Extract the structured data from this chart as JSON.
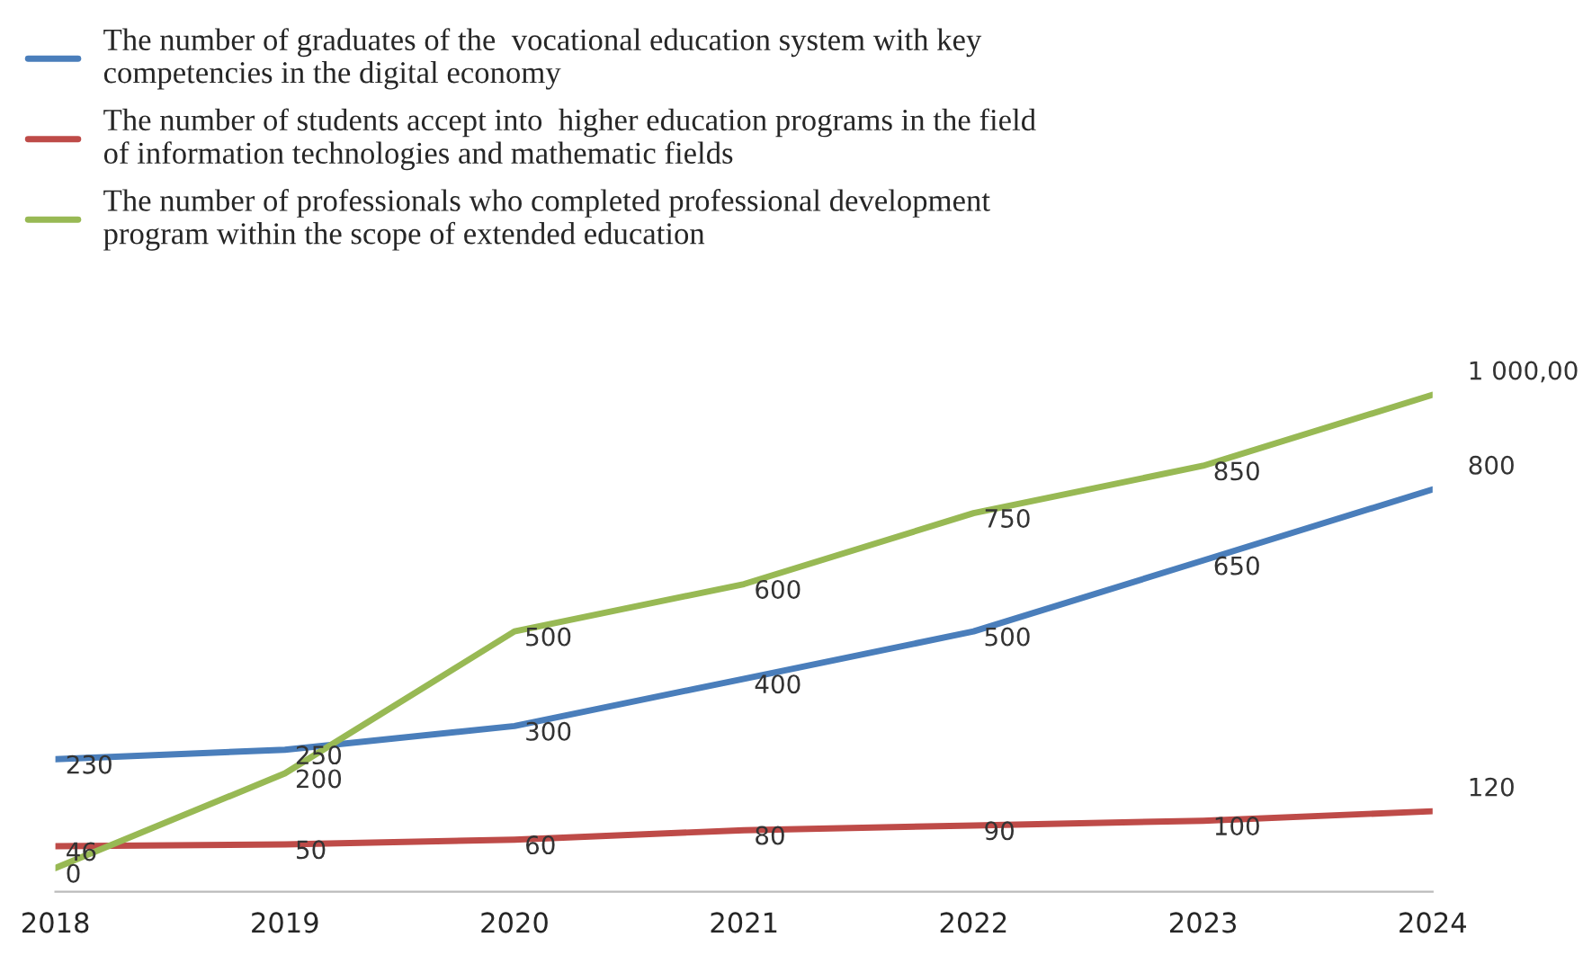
{
  "chart_data": {
    "type": "line",
    "categories": [
      "2018",
      "2019",
      "2020",
      "2021",
      "2022",
      "2023",
      "2024"
    ],
    "series": [
      {
        "name": "The number of graduates of the  vocational education system with key\ncompetencies in the digital economy",
        "color": "#4a7ebb",
        "values": [
          230,
          250,
          300,
          400,
          500,
          650,
          800
        ],
        "value_labels": [
          "230",
          "250",
          "300",
          "400",
          "500",
          "650",
          "800"
        ]
      },
      {
        "name": "The number of students accept into  higher education programs in the field\nof information technologies and mathematic fields",
        "color": "#be4b48",
        "values": [
          46,
          50,
          60,
          80,
          90,
          100,
          120
        ],
        "value_labels": [
          "46",
          "50",
          "60",
          "80",
          "90",
          "100",
          "120"
        ]
      },
      {
        "name": "The number of professionals who completed professional development\nprogram within the scope of extended education",
        "color": "#98b954",
        "values": [
          0,
          200,
          500,
          600,
          750,
          850,
          1000
        ],
        "value_labels": [
          "0",
          "200",
          "500",
          "600",
          "750",
          "850",
          "1 000,00"
        ]
      }
    ],
    "legend": "top left",
    "grid": false,
    "marker": "none",
    "line_style": "solid"
  }
}
